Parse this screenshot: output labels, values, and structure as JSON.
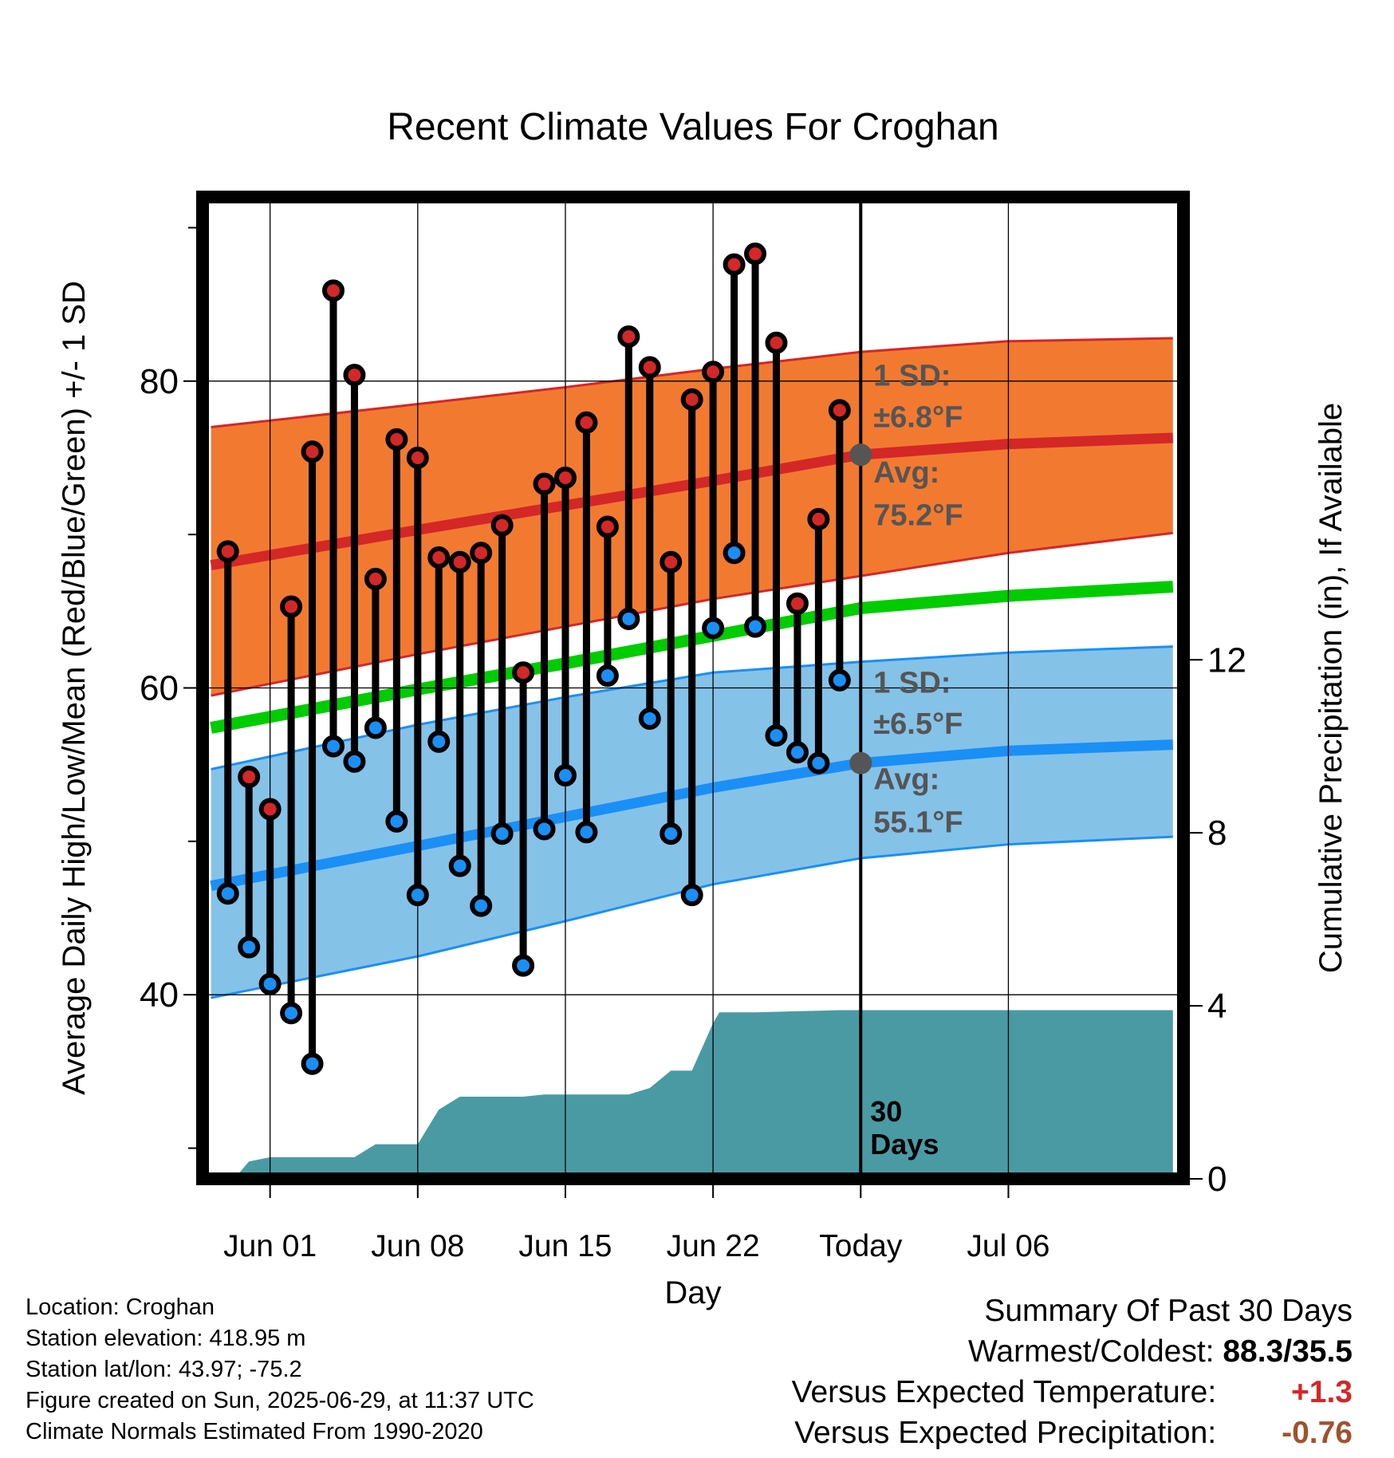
{
  "chart_data": {
    "type": "line",
    "title": "Recent Climate Values For Croghan",
    "xlabel": "Day",
    "ylabel": "Average Daily High/Low/Mean (Red/Blue/Green) +/- 1 SD",
    "y2label": "Cumulative Precipitation (in), If Available",
    "xlim": [
      -3.2,
      43.3
    ],
    "ylim": [
      28,
      92
    ],
    "y2lim": [
      0,
      22.7
    ],
    "x_tick_labels": [
      "Jun 01",
      "Jun 08",
      "Jun 15",
      "Jun 22",
      "Today",
      "Jul 06"
    ],
    "y_ticks": [
      40,
      60,
      80
    ],
    "y2_ticks": [
      0,
      4,
      8,
      12
    ],
    "grid": true,
    "today_index": 28,
    "today_marker_label": "30 Days",
    "high_normal": {
      "sd_label": "1 SD:",
      "sd_value": "±6.8°F",
      "avg_label": "Avg:",
      "avg_value": "75.2°F",
      "x": [
        -2.8,
        7,
        14,
        21,
        28,
        35,
        42.8
      ],
      "mean": [
        68.0,
        70.3,
        71.9,
        73.5,
        75.2,
        75.9,
        76.3
      ],
      "upper": [
        77.0,
        78.5,
        79.6,
        80.8,
        81.9,
        82.6,
        82.8
      ],
      "lower": [
        59.5,
        62.2,
        64.0,
        65.8,
        67.3,
        68.8,
        70.1
      ]
    },
    "mean_normal": {
      "x": [
        -2.8,
        7,
        14,
        21,
        28,
        35,
        42.8
      ],
      "mean": [
        57.4,
        59.9,
        61.6,
        63.4,
        65.2,
        66.0,
        66.6
      ]
    },
    "low_normal": {
      "sd_label": "1 SD:",
      "sd_value": "±6.5°F",
      "avg_label": "Avg:",
      "avg_value": "55.1°F",
      "x": [
        -2.8,
        7,
        14,
        21,
        28,
        35,
        42.8
      ],
      "mean": [
        47.1,
        49.7,
        51.6,
        53.5,
        55.1,
        55.9,
        56.3
      ],
      "upper": [
        54.7,
        57.6,
        59.4,
        61.0,
        61.7,
        62.3,
        62.7
      ],
      "lower": [
        39.8,
        42.5,
        44.8,
        47.2,
        48.9,
        49.8,
        50.3
      ]
    },
    "series": [
      {
        "name": "High",
        "color": "#d42727",
        "x": [
          -2,
          -1,
          0,
          1,
          2,
          3,
          4,
          5,
          6,
          7,
          8,
          9,
          10,
          11,
          12,
          13,
          14,
          15,
          16,
          17,
          18,
          19,
          20,
          21,
          22,
          23,
          24,
          25,
          26,
          27
        ],
        "values": [
          68.9,
          54.2,
          52.1,
          65.3,
          75.4,
          85.9,
          80.4,
          67.1,
          76.2,
          75.0,
          68.5,
          68.2,
          68.8,
          70.6,
          61.0,
          73.3,
          73.7,
          77.3,
          70.5,
          82.9,
          80.9,
          68.2,
          78.8,
          80.6,
          87.6,
          88.3,
          82.5,
          65.5,
          71.0,
          78.1
        ]
      },
      {
        "name": "Low",
        "color": "#1a8ff5",
        "x": [
          -2,
          -1,
          0,
          1,
          2,
          3,
          4,
          5,
          6,
          7,
          8,
          9,
          10,
          11,
          12,
          13,
          14,
          15,
          16,
          17,
          18,
          19,
          20,
          21,
          22,
          23,
          24,
          25,
          26,
          27
        ],
        "values": [
          46.6,
          43.1,
          40.7,
          38.8,
          35.5,
          56.2,
          55.2,
          57.4,
          51.3,
          46.5,
          56.5,
          48.4,
          45.8,
          50.5,
          41.9,
          50.8,
          54.3,
          50.6,
          60.8,
          64.5,
          58.0,
          50.5,
          46.5,
          63.9,
          68.8,
          64.0,
          56.9,
          55.8,
          55.1,
          60.5
        ]
      },
      {
        "name": "Cumulative Precipitation",
        "color": "#4a9aa4",
        "x": [
          -3,
          -1.7,
          -1,
          0,
          1,
          2,
          3,
          4,
          5,
          6,
          7,
          8,
          9,
          10,
          11,
          12,
          13,
          14,
          15,
          16,
          17,
          18,
          19,
          20,
          21,
          21.3,
          22,
          23,
          27,
          42.8
        ],
        "values": [
          0,
          0,
          0.4,
          0.5,
          0.5,
          0.5,
          0.5,
          0.5,
          0.8,
          0.8,
          0.8,
          1.6,
          1.9,
          1.9,
          1.9,
          1.9,
          1.95,
          1.95,
          1.95,
          1.95,
          1.95,
          2.1,
          2.5,
          2.5,
          3.6,
          3.85,
          3.85,
          3.85,
          3.9,
          3.9
        ]
      }
    ]
  },
  "station_info": {
    "location": "Location: Croghan",
    "elevation": "Station elevation: 418.95 m",
    "latlon": "Station lat/lon: 43.97; -75.2",
    "created": "Figure created on Sun, 2025-06-29, at 11:37 UTC",
    "normals": "Climate Normals Estimated From 1990-2020"
  },
  "summary": {
    "title": "Summary Of Past 30 Days",
    "warmest_coldest_label": "Warmest/Coldest:",
    "warmest_coldest_value": "88.3/35.5",
    "temp_label": "Versus Expected Temperature:",
    "temp_value": "+1.3",
    "precip_label": "Versus Expected Precipitation:",
    "precip_value": "-0.76",
    "colors": {
      "warm": "#d42727",
      "dry": "#a0522d"
    }
  }
}
